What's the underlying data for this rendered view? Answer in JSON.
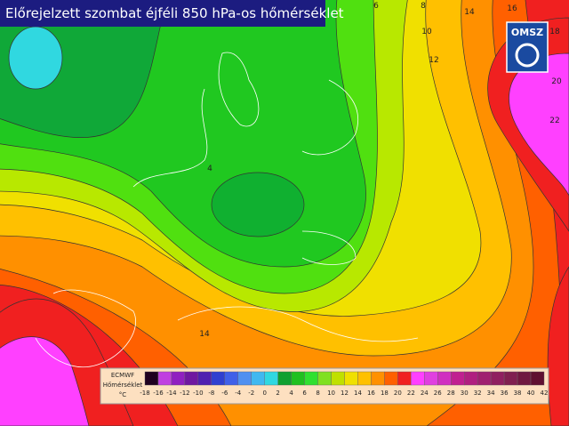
{
  "title": "Előrejelzett szombat éjféli 850 hPa-os hőmérséklet",
  "logo": "OMSZ",
  "legend": {
    "model": "ECMWF",
    "label": "Hőmérséklet",
    "unit": "°C",
    "ticks": [
      -18,
      -16,
      -14,
      -12,
      -10,
      -8,
      -6,
      -4,
      -2,
      0,
      2,
      4,
      6,
      8,
      10,
      12,
      14,
      16,
      18,
      20,
      22,
      24,
      26,
      28,
      30,
      32,
      34,
      36,
      38,
      40,
      42
    ],
    "colors": [
      "#200020",
      "#c040e0",
      "#9020c0",
      "#7018a0",
      "#5020b0",
      "#3040d0",
      "#4060e8",
      "#5090f0",
      "#40b8f0",
      "#30d8e0",
      "#10a030",
      "#20c020",
      "#30e030",
      "#80e020",
      "#c0e000",
      "#f0e000",
      "#ffc000",
      "#ff9000",
      "#ff6000",
      "#f02020",
      "#ff40ff",
      "#e040e0",
      "#d030c0",
      "#c02090",
      "#b02080",
      "#a02070",
      "#902060",
      "#802050",
      "#701840",
      "#601030"
    ]
  },
  "contour_labels": [
    "6",
    "8",
    "10",
    "12",
    "14",
    "16",
    "18",
    "20",
    "22",
    "4",
    "14"
  ]
}
